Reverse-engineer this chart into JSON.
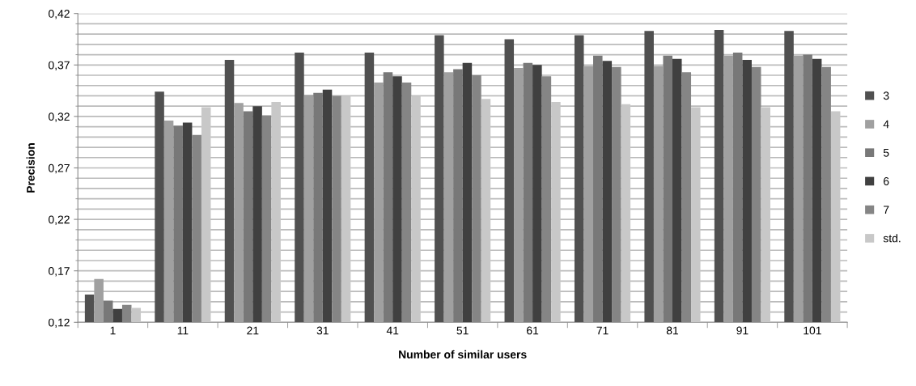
{
  "chart_data": {
    "type": "bar",
    "xlabel": "Number of similar users",
    "ylabel": "Precision",
    "categories": [
      "1",
      "11",
      "21",
      "31",
      "41",
      "51",
      "61",
      "71",
      "81",
      "91",
      "101"
    ],
    "series": [
      {
        "name": "3",
        "color": "#505050",
        "values": [
          0.147,
          0.344,
          0.375,
          0.382,
          0.382,
          0.399,
          0.395,
          0.399,
          0.403,
          0.404,
          0.403
        ]
      },
      {
        "name": "4",
        "color": "#a0a0a0",
        "values": [
          0.162,
          0.316,
          0.333,
          0.341,
          0.353,
          0.363,
          0.367,
          0.369,
          0.369,
          0.379,
          0.379
        ]
      },
      {
        "name": "5",
        "color": "#787878",
        "values": [
          0.141,
          0.311,
          0.325,
          0.343,
          0.363,
          0.366,
          0.372,
          0.379,
          0.379,
          0.382,
          0.38
        ]
      },
      {
        "name": "6",
        "color": "#404040",
        "values": [
          0.133,
          0.314,
          0.33,
          0.346,
          0.359,
          0.372,
          0.37,
          0.374,
          0.376,
          0.375,
          0.376
        ]
      },
      {
        "name": "7",
        "color": "#858585",
        "values": [
          0.137,
          0.302,
          0.321,
          0.34,
          0.353,
          0.36,
          0.359,
          0.368,
          0.363,
          0.368,
          0.368
        ]
      },
      {
        "name": "std.",
        "color": "#c8c8c8",
        "values": [
          0.134,
          0.329,
          0.334,
          0.34,
          0.34,
          0.337,
          0.334,
          0.332,
          0.329,
          0.329,
          0.325
        ]
      }
    ],
    "ylim": [
      0.12,
      0.42
    ],
    "yticks": [
      {
        "value": 0.12,
        "label": "0,12"
      },
      {
        "value": 0.17,
        "label": "0,17"
      },
      {
        "value": 0.22,
        "label": "0,22"
      },
      {
        "value": 0.27,
        "label": "0,27"
      },
      {
        "value": 0.32,
        "label": "0,32"
      },
      {
        "value": 0.37,
        "label": "0,37"
      },
      {
        "value": 0.42,
        "label": "0,42"
      }
    ],
    "grid": "y",
    "legend": "right"
  }
}
